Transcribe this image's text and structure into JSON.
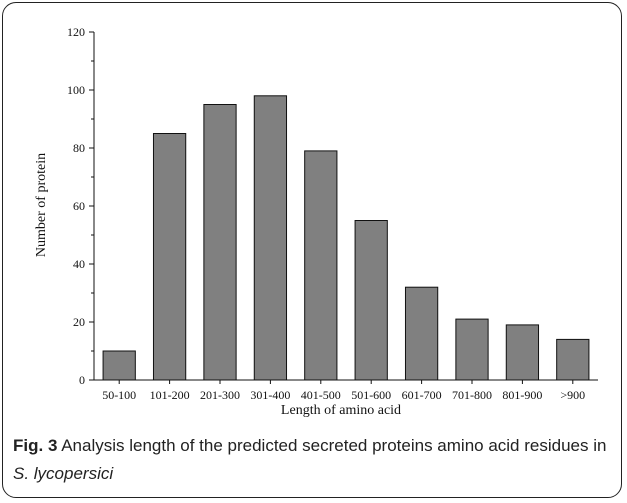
{
  "chart_data": {
    "type": "bar",
    "categories": [
      "50-100",
      "101-200",
      "201-300",
      "301-400",
      "401-500",
      "501-600",
      "601-700",
      "701-800",
      "801-900",
      ">900"
    ],
    "values": [
      10,
      85,
      95,
      98,
      79,
      55,
      32,
      21,
      19,
      14
    ],
    "xlabel": "Length of amino acid",
    "ylabel": "Number of protein",
    "ylim": [
      0,
      120
    ],
    "yticks": [
      0,
      20,
      40,
      60,
      80,
      100,
      120
    ],
    "bar_color": "#808080",
    "grid": false,
    "legend": "none"
  },
  "caption": {
    "label": "Fig. 3",
    "text": " Analysis length of the predicted secreted proteins amino acid residues in ",
    "species": "S. lycopersici"
  }
}
